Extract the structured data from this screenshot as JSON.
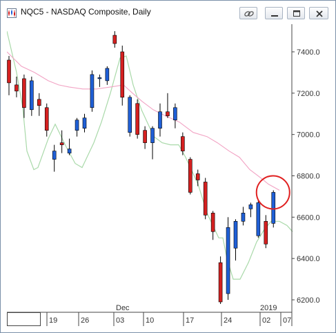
{
  "window": {
    "title": "NQC5 - NASDAQ Composite, Daily"
  },
  "colors": {
    "up": "#1f5fd6",
    "down": "#d42020",
    "ma_fast": "#a9d9a9",
    "ma_slow": "#f2a3c4",
    "circle": "#e02020",
    "outline": "#000000"
  },
  "chart_data": {
    "type": "candlestick",
    "ylim": [
      6150,
      7500
    ],
    "y_ticks": [
      "7400.0",
      "7200.0",
      "7000.0",
      "6800.0",
      "6600.0",
      "6400.0",
      "6200.0"
    ],
    "x_ticks": [
      "19",
      "26",
      "03",
      "10",
      "17",
      "24",
      "02",
      "07"
    ],
    "x_upper_labels": [
      "Dec",
      "2019"
    ],
    "candles": [
      {
        "o": 7360,
        "h": 7380,
        "l": 7190,
        "c": 7250
      },
      {
        "o": 7240,
        "h": 7280,
        "l": 7180,
        "c": 7210
      },
      {
        "o": 7270,
        "h": 7290,
        "l": 7080,
        "c": 7130
      },
      {
        "o": 7120,
        "h": 7280,
        "l": 7090,
        "c": 7260
      },
      {
        "o": 7170,
        "h": 7200,
        "l": 7090,
        "c": 7140
      },
      {
        "o": 7130,
        "h": 7150,
        "l": 6990,
        "c": 7020
      },
      {
        "o": 6880,
        "h": 6950,
        "l": 6820,
        "c": 6920
      },
      {
        "o": 6960,
        "h": 7020,
        "l": 6910,
        "c": 6950
      },
      {
        "o": 6910,
        "h": 6980,
        "l": 6900,
        "c": 6930
      },
      {
        "o": 7020,
        "h": 7080,
        "l": 6990,
        "c": 7070
      },
      {
        "o": 7030,
        "h": 7100,
        "l": 7010,
        "c": 7080
      },
      {
        "o": 7130,
        "h": 7310,
        "l": 7110,
        "c": 7290
      },
      {
        "o": 7270,
        "h": 7290,
        "l": 7230,
        "c": 7275
      },
      {
        "o": 7260,
        "h": 7330,
        "l": 7240,
        "c": 7320
      },
      {
        "o": 7480,
        "h": 7500,
        "l": 7420,
        "c": 7440
      },
      {
        "o": 7400,
        "h": 7430,
        "l": 7140,
        "c": 7180
      },
      {
        "o": 7010,
        "h": 7190,
        "l": 6990,
        "c": 7180
      },
      {
        "o": 7150,
        "h": 7170,
        "l": 6980,
        "c": 7000
      },
      {
        "o": 7020,
        "h": 7040,
        "l": 6930,
        "c": 6960
      },
      {
        "o": 6960,
        "h": 7040,
        "l": 6880,
        "c": 7030
      },
      {
        "o": 7030,
        "h": 7150,
        "l": 6990,
        "c": 7110
      },
      {
        "o": 7110,
        "h": 7200,
        "l": 7080,
        "c": 7090
      },
      {
        "o": 7070,
        "h": 7150,
        "l": 7030,
        "c": 7130
      },
      {
        "o": 6990,
        "h": 7010,
        "l": 6900,
        "c": 6920
      },
      {
        "o": 6880,
        "h": 6890,
        "l": 6710,
        "c": 6720
      },
      {
        "o": 6810,
        "h": 6830,
        "l": 6750,
        "c": 6780
      },
      {
        "o": 6770,
        "h": 6790,
        "l": 6590,
        "c": 6610
      },
      {
        "o": 6620,
        "h": 6630,
        "l": 6490,
        "c": 6530
      },
      {
        "o": 6380,
        "h": 6410,
        "l": 6180,
        "c": 6190
      },
      {
        "o": 6230,
        "h": 6600,
        "l": 6200,
        "c": 6550
      },
      {
        "o": 6450,
        "h": 6590,
        "l": 6390,
        "c": 6580
      },
      {
        "o": 6580,
        "h": 6650,
        "l": 6560,
        "c": 6620
      },
      {
        "o": 6640,
        "h": 6670,
        "l": 6600,
        "c": 6660
      },
      {
        "o": 6510,
        "h": 6680,
        "l": 6500,
        "c": 6670
      },
      {
        "o": 6580,
        "h": 6610,
        "l": 6450,
        "c": 6470
      },
      {
        "o": 6570,
        "h": 6730,
        "l": 6550,
        "c": 6720
      }
    ],
    "ma_fast": [
      [
        0,
        7500
      ],
      [
        14,
        7300
      ],
      [
        23,
        7130
      ],
      [
        29,
        6920
      ],
      [
        39,
        6830
      ],
      [
        45,
        6840
      ],
      [
        60,
        6980
      ],
      [
        70,
        7050
      ],
      [
        86,
        6940
      ],
      [
        99,
        6860
      ],
      [
        109,
        6840
      ],
      [
        126,
        6960
      ],
      [
        137,
        7060
      ],
      [
        150,
        7200
      ],
      [
        164,
        7370
      ],
      [
        173,
        7380
      ],
      [
        183,
        7240
      ],
      [
        195,
        7120
      ],
      [
        213,
        6990
      ],
      [
        225,
        6960
      ],
      [
        237,
        6950
      ],
      [
        249,
        6950
      ],
      [
        259,
        6890
      ],
      [
        277,
        6760
      ],
      [
        290,
        6620
      ],
      [
        307,
        6500
      ],
      [
        313,
        6500
      ],
      [
        319,
        6400
      ],
      [
        328,
        6300
      ],
      [
        338,
        6300
      ],
      [
        350,
        6380
      ],
      [
        362,
        6480
      ],
      [
        373,
        6540
      ],
      [
        383,
        6580
      ],
      [
        395,
        6580
      ],
      [
        406,
        6560
      ],
      [
        414,
        6530
      ]
    ],
    "ma_slow": [
      [
        0,
        7400
      ],
      [
        21,
        7330
      ],
      [
        40,
        7300
      ],
      [
        60,
        7260
      ],
      [
        75,
        7240
      ],
      [
        90,
        7230
      ],
      [
        110,
        7220
      ],
      [
        130,
        7220
      ],
      [
        150,
        7230
      ],
      [
        169,
        7240
      ],
      [
        182,
        7200
      ],
      [
        196,
        7160
      ],
      [
        212,
        7120
      ],
      [
        230,
        7090
      ],
      [
        250,
        7060
      ],
      [
        270,
        7010
      ],
      [
        290,
        6990
      ],
      [
        305,
        6960
      ],
      [
        322,
        6920
      ],
      [
        337,
        6890
      ],
      [
        352,
        6830
      ],
      [
        368,
        6790
      ],
      [
        379,
        6760
      ],
      [
        395,
        6730
      ]
    ],
    "highlight_circle": {
      "candle_index": 35,
      "price": 6730
    }
  }
}
